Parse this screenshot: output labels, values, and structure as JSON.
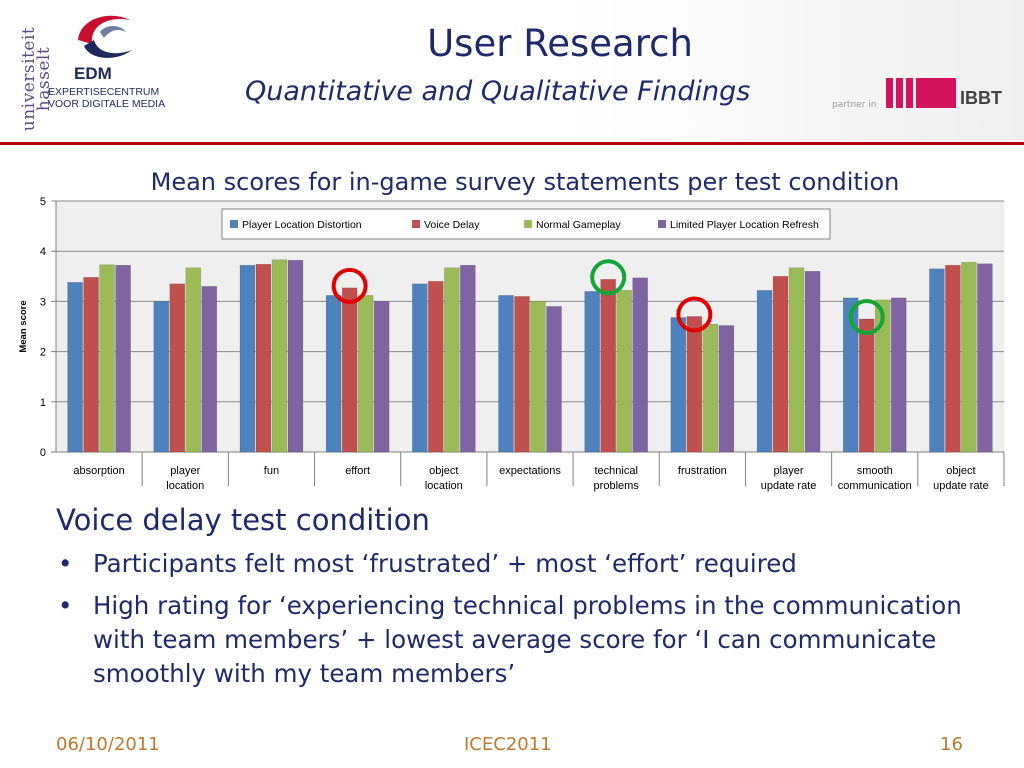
{
  "header": {
    "title": "User Research",
    "subtitle": "Quantitative and Qualitative Findings",
    "partner_text": "partner in",
    "partner_logo_text": "IBBT"
  },
  "logo": {
    "university_line1": "universiteit",
    "university_line2": "hasselt",
    "edm_name": "EDM",
    "edm_sub_line1": "EXPERTISECENTRUM",
    "edm_sub_line2": "VOOR DIGITALE MEDIA"
  },
  "colors": {
    "title": "#1f2a6b",
    "accent_rule": "#b30000",
    "footer": "#c0782c",
    "highlight_red": "#e00000",
    "highlight_green": "#12a63a"
  },
  "chart_data": {
    "type": "bar",
    "title": "Mean scores for in-game survey statements per test condition",
    "xlabel": "",
    "ylabel": "Mean score",
    "ylim": [
      0,
      5
    ],
    "yticks": [
      0,
      1,
      2,
      3,
      4,
      5
    ],
    "grid": true,
    "legend_position": "top-center",
    "categories": [
      [
        "absorption"
      ],
      [
        "player",
        "location"
      ],
      [
        "fun"
      ],
      [
        "effort"
      ],
      [
        "object",
        "location"
      ],
      [
        "expectations"
      ],
      [
        "technical",
        "problems"
      ],
      [
        "frustration"
      ],
      [
        "player",
        "update rate"
      ],
      [
        "smooth",
        "communication"
      ],
      [
        "object",
        "update rate"
      ]
    ],
    "series": [
      {
        "name": "Player Location Distortion",
        "color": "#4f81bd",
        "values": [
          3.38,
          3.0,
          3.72,
          3.12,
          3.35,
          3.12,
          3.2,
          2.68,
          3.22,
          3.07,
          3.65
        ]
      },
      {
        "name": "Voice Delay",
        "color": "#c0504d",
        "values": [
          3.48,
          3.35,
          3.74,
          3.27,
          3.4,
          3.1,
          3.44,
          2.7,
          3.5,
          2.65,
          3.72
        ]
      },
      {
        "name": "Normal Gameplay",
        "color": "#9bbb59",
        "values": [
          3.73,
          3.67,
          3.83,
          3.12,
          3.67,
          3.0,
          3.22,
          2.55,
          3.67,
          3.03,
          3.78
        ]
      },
      {
        "name": "Limited Player Location Refresh",
        "color": "#8064a2",
        "values": [
          3.72,
          3.3,
          3.82,
          3.0,
          3.72,
          2.9,
          3.47,
          2.52,
          3.6,
          3.07,
          3.75
        ]
      }
    ],
    "highlights": [
      {
        "category_index": 3,
        "series_index": 1,
        "color": "red"
      },
      {
        "category_index": 6,
        "series_index": 1,
        "color": "green"
      },
      {
        "category_index": 7,
        "series_index": 1,
        "color": "red"
      },
      {
        "category_index": 9,
        "series_index": 1,
        "color": "green"
      }
    ]
  },
  "body": {
    "section_heading": "Voice delay test condition",
    "bullets": [
      "Participants felt most ‘frustrated’ + most ‘effort’ required",
      "High rating for ‘experiencing technical problems in the communication with team members’ + lowest average score for ‘I can communicate smoothly with my team members’"
    ]
  },
  "footer": {
    "date": "06/10/2011",
    "event": "ICEC2011",
    "page": "16"
  }
}
